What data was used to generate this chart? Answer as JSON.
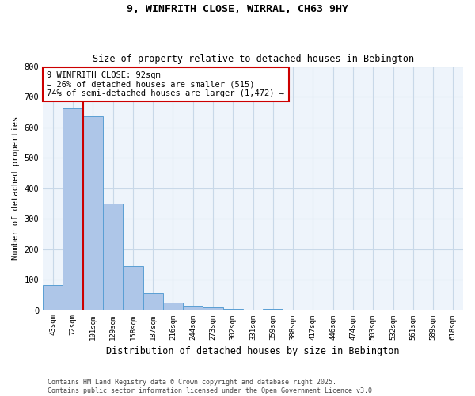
{
  "title1": "9, WINFRITH CLOSE, WIRRAL, CH63 9HY",
  "title2": "Size of property relative to detached houses in Bebington",
  "xlabel": "Distribution of detached houses by size in Bebington",
  "ylabel": "Number of detached properties",
  "categories": [
    "43sqm",
    "72sqm",
    "101sqm",
    "129sqm",
    "158sqm",
    "187sqm",
    "216sqm",
    "244sqm",
    "273sqm",
    "302sqm",
    "331sqm",
    "359sqm",
    "388sqm",
    "417sqm",
    "446sqm",
    "474sqm",
    "503sqm",
    "532sqm",
    "561sqm",
    "589sqm",
    "618sqm"
  ],
  "values": [
    83,
    665,
    635,
    350,
    145,
    57,
    25,
    15,
    10,
    5,
    0,
    5,
    0,
    0,
    0,
    0,
    0,
    0,
    0,
    0,
    0
  ],
  "bar_color": "#aec6e8",
  "bar_edge_color": "#5a9fd4",
  "annotation_text": "9 WINFRITH CLOSE: 92sqm\n← 26% of detached houses are smaller (515)\n74% of semi-detached houses are larger (1,472) →",
  "annotation_box_color": "#ffffff",
  "annotation_box_edge_color": "#cc0000",
  "ylim": [
    0,
    800
  ],
  "yticks": [
    0,
    100,
    200,
    300,
    400,
    500,
    600,
    700,
    800
  ],
  "grid_color": "#c8d8e8",
  "background_color": "#eef4fb",
  "footer1": "Contains HM Land Registry data © Crown copyright and database right 2025.",
  "footer2": "Contains public sector information licensed under the Open Government Licence v3.0."
}
